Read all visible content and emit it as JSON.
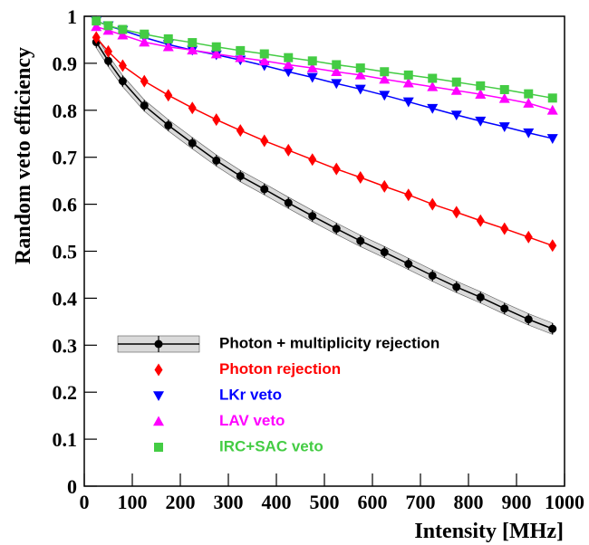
{
  "chart_data": {
    "type": "line",
    "x_label": "Intensity [MHz]",
    "y_label": "Random veto efficiency",
    "x": [
      25,
      50,
      80,
      125,
      175,
      225,
      275,
      325,
      375,
      425,
      475,
      525,
      575,
      625,
      675,
      725,
      775,
      825,
      875,
      925,
      975
    ],
    "xlim": [
      0,
      1000
    ],
    "xticks": [
      0,
      100,
      200,
      300,
      400,
      500,
      600,
      700,
      800,
      900,
      1000
    ],
    "ylim": [
      0,
      1
    ],
    "yticks": [
      0,
      0.1,
      0.2,
      0.3,
      0.4,
      0.5,
      0.6,
      0.7,
      0.8,
      0.9,
      1
    ],
    "series": [
      {
        "name": "Photon + multiplicity rejection",
        "color": "#000000",
        "marker": "circle",
        "values": [
          0.945,
          0.905,
          0.862,
          0.81,
          0.768,
          0.73,
          0.693,
          0.66,
          0.632,
          0.603,
          0.575,
          0.548,
          0.522,
          0.498,
          0.473,
          0.448,
          0.424,
          0.402,
          0.378,
          0.355,
          0.335
        ],
        "errors": [
          0.012,
          0.012,
          0.012,
          0.012,
          0.012,
          0.012,
          0.012,
          0.012,
          0.012,
          0.012,
          0.012,
          0.012,
          0.012,
          0.012,
          0.012,
          0.012,
          0.012,
          0.012,
          0.012,
          0.012,
          0.012
        ]
      },
      {
        "name": "Photon rejection",
        "color": "#ff0000",
        "marker": "diamond",
        "values": [
          0.955,
          0.925,
          0.895,
          0.862,
          0.832,
          0.805,
          0.78,
          0.757,
          0.735,
          0.715,
          0.695,
          0.675,
          0.657,
          0.638,
          0.62,
          0.6,
          0.583,
          0.565,
          0.548,
          0.53,
          0.512
        ]
      },
      {
        "name": "LKr veto",
        "color": "#0000ff",
        "marker": "triangle-down",
        "values": [
          0.99,
          0.98,
          0.97,
          0.955,
          0.94,
          0.928,
          0.918,
          0.907,
          0.895,
          0.882,
          0.87,
          0.857,
          0.845,
          0.832,
          0.818,
          0.804,
          0.79,
          0.777,
          0.765,
          0.752,
          0.74
        ]
      },
      {
        "name": "LAV veto",
        "color": "#ff00ff",
        "marker": "triangle-up",
        "values": [
          0.978,
          0.97,
          0.96,
          0.945,
          0.935,
          0.928,
          0.92,
          0.912,
          0.905,
          0.897,
          0.89,
          0.882,
          0.875,
          0.866,
          0.858,
          0.85,
          0.842,
          0.834,
          0.825,
          0.815,
          0.8
        ]
      },
      {
        "name": "IRC+SAC veto",
        "color": "#44cc44",
        "marker": "square",
        "values": [
          0.99,
          0.98,
          0.972,
          0.962,
          0.952,
          0.944,
          0.935,
          0.927,
          0.92,
          0.912,
          0.905,
          0.897,
          0.89,
          0.882,
          0.875,
          0.868,
          0.86,
          0.852,
          0.844,
          0.835,
          0.826
        ]
      }
    ]
  }
}
